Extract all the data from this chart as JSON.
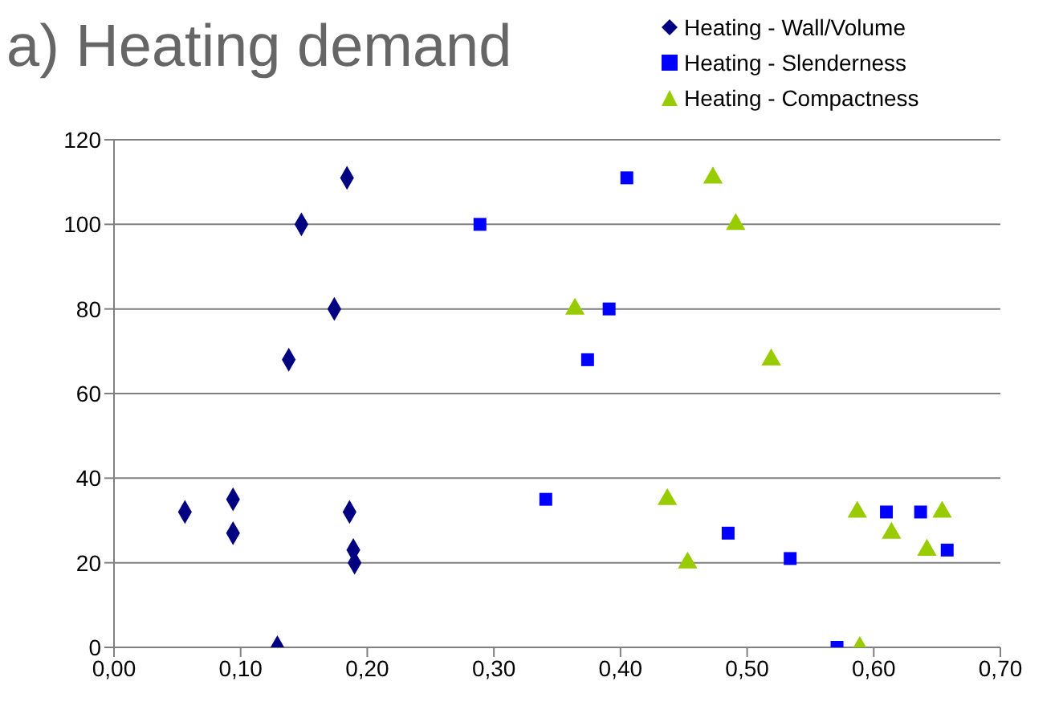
{
  "chart_data": {
    "type": "scatter",
    "title": "a) Heating demand",
    "xlim": [
      0,
      0.7
    ],
    "xticks": [
      {
        "value": 0,
        "label": "0,00"
      },
      {
        "value": 0.1,
        "label": "0,10"
      },
      {
        "value": 0.2,
        "label": "0,20"
      },
      {
        "value": 0.3,
        "label": "0,30"
      },
      {
        "value": 0.4,
        "label": "0,40"
      },
      {
        "value": 0.5,
        "label": "0,50"
      },
      {
        "value": 0.6,
        "label": "0,60"
      },
      {
        "value": 0.7,
        "label": "0,70"
      }
    ],
    "ylim": [
      0,
      120
    ],
    "yticks": [
      0,
      20,
      40,
      60,
      80,
      100,
      120
    ],
    "grid": "y",
    "legend": "top right",
    "series": [
      {
        "name": "Heating - Wall/Volume",
        "color": "#000080",
        "marker": "diamond",
        "x": [
          0.184,
          0.148,
          0.174,
          0.138,
          0.056,
          0.094,
          0.094,
          0.186,
          0.189,
          0.19,
          0.129
        ],
        "values": [
          111,
          100,
          80,
          68,
          32,
          35,
          27,
          32,
          23,
          20,
          0
        ]
      },
      {
        "name": "Heating - Slenderness",
        "color": "#0000ff",
        "marker": "square",
        "x": [
          0.405,
          0.289,
          0.391,
          0.374,
          0.341,
          0.485,
          0.534,
          0.571,
          0.61,
          0.637,
          0.658
        ],
        "values": [
          111,
          100,
          80,
          68,
          35,
          27,
          21,
          0,
          32,
          32,
          23
        ]
      },
      {
        "name": "Heating - Compactness",
        "color": "#99cc00",
        "marker": "triangle",
        "x": [
          0.473,
          0.491,
          0.364,
          0.519,
          0.437,
          0.453,
          0.587,
          0.614,
          0.642,
          0.654,
          0.589
        ],
        "values": [
          111,
          100,
          80,
          68,
          35,
          20,
          32,
          27,
          23,
          32,
          0
        ]
      }
    ]
  }
}
